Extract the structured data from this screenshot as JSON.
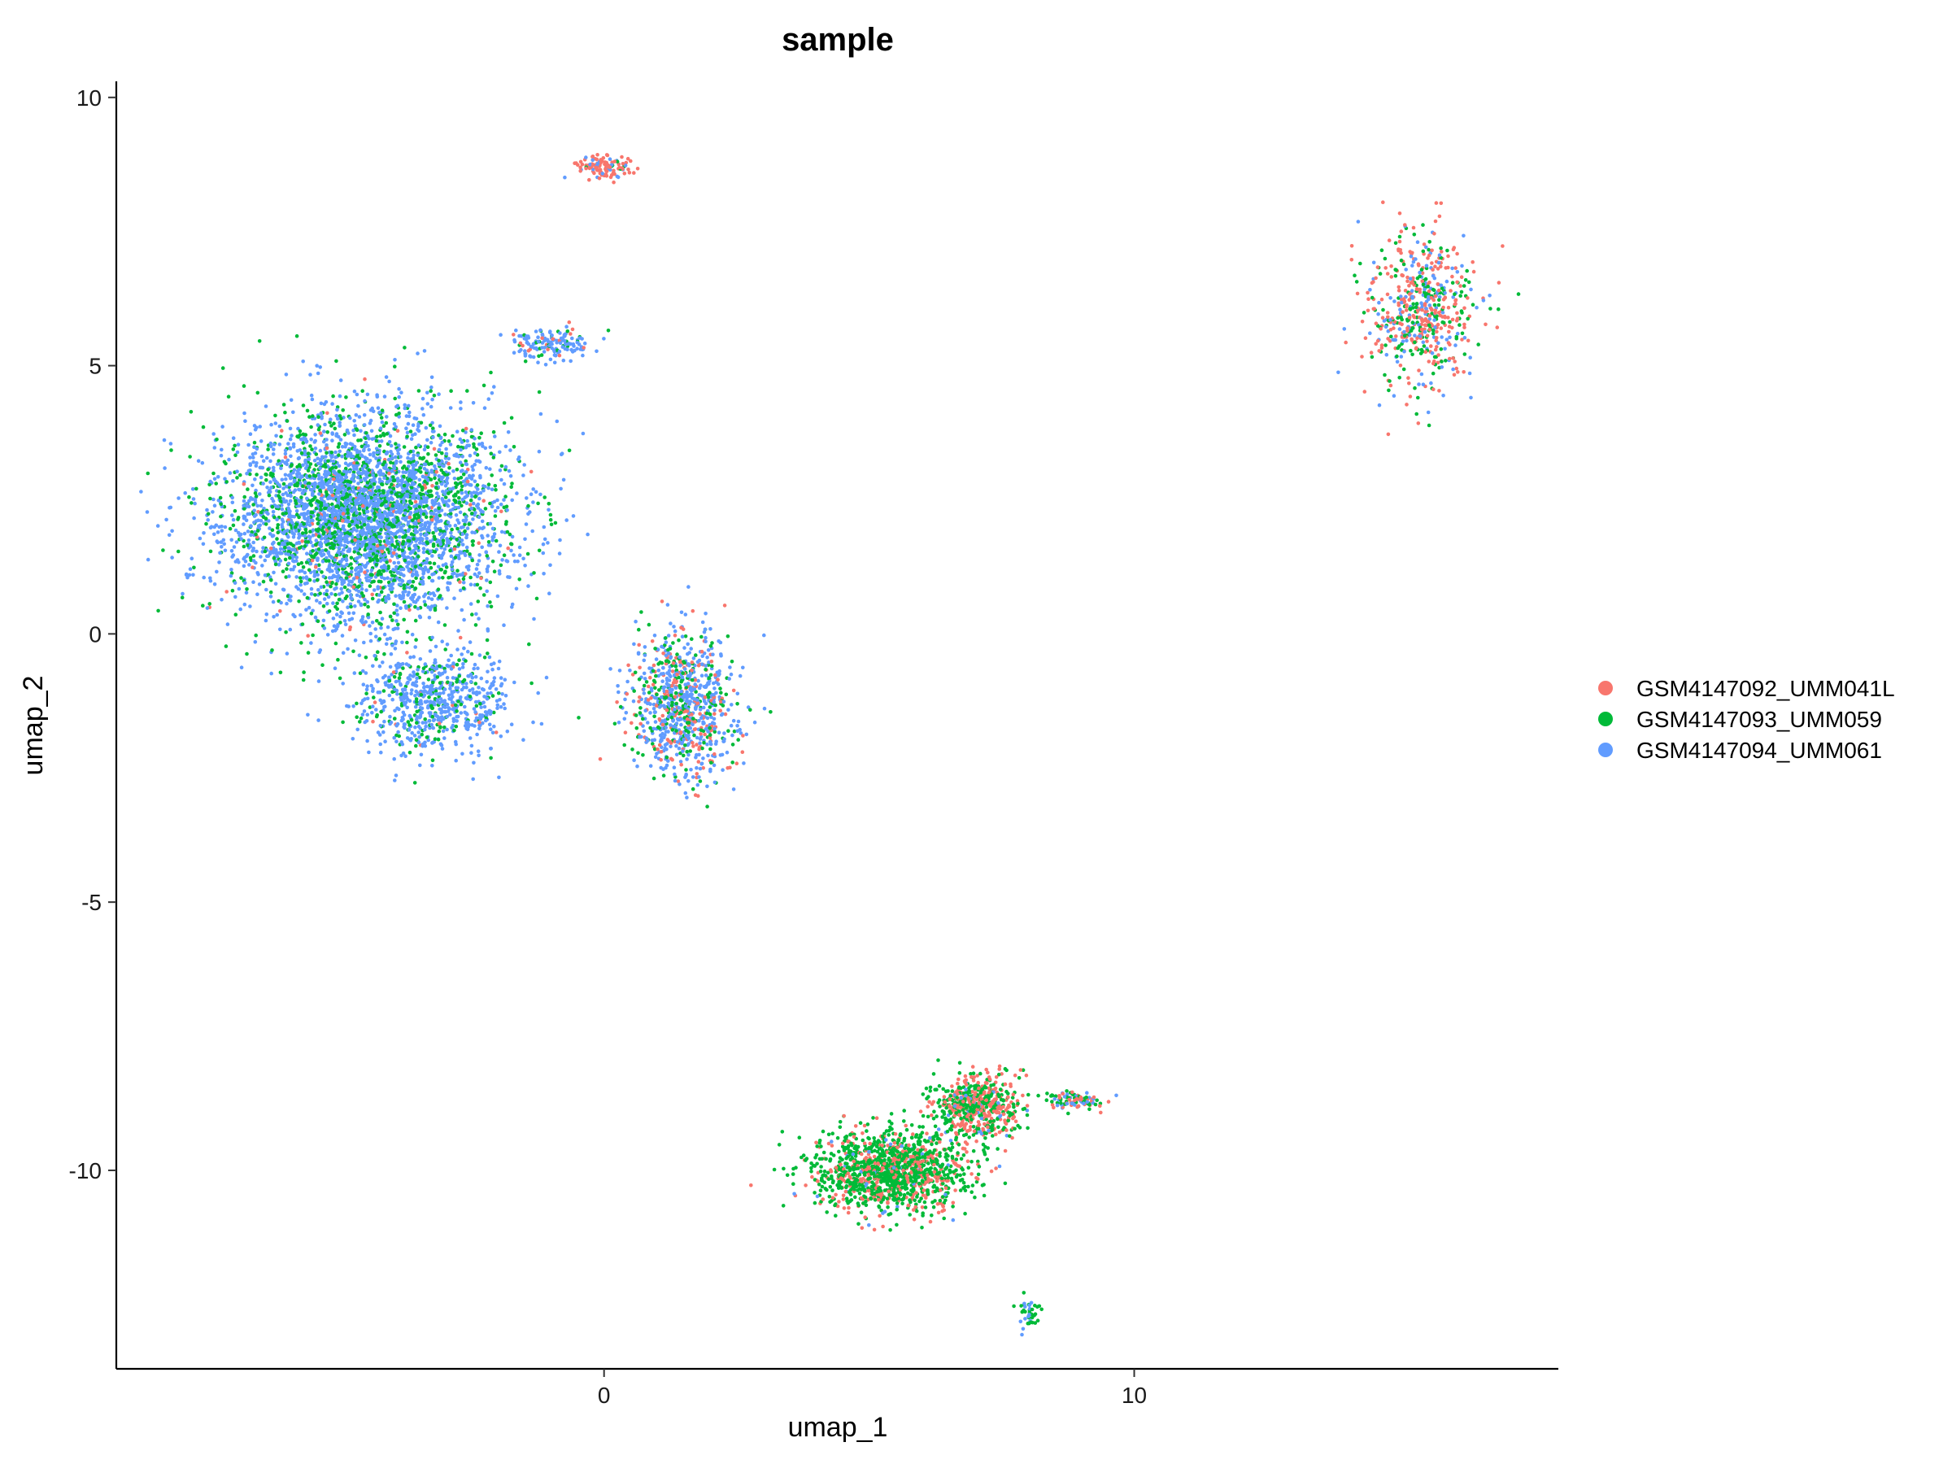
{
  "chart_data": {
    "type": "scatter",
    "title": "sample",
    "xlabel": "umap_1",
    "ylabel": "umap_2",
    "xlim": [
      -9.2,
      18.0
    ],
    "ylim": [
      -13.7,
      10.3
    ],
    "x_ticks": [
      0,
      10
    ],
    "y_ticks": [
      -10,
      -5,
      0,
      5,
      10
    ],
    "grid": false,
    "legend_position": "right",
    "series": [
      {
        "name": "GSM4147092_UMM041L",
        "color": "#F8766D"
      },
      {
        "name": "GSM4147093_UMM059",
        "color": "#00BA38"
      },
      {
        "name": "GSM4147094_UMM061",
        "color": "#619CFF"
      }
    ],
    "clusters": [
      {
        "center": [
          -4.5,
          2.2
        ],
        "spread": [
          2.2,
          1.6
        ],
        "n": 4200,
        "mix": [
          0.03,
          0.32,
          0.65
        ]
      },
      {
        "center": [
          -3.2,
          -1.3
        ],
        "spread": [
          1.2,
          0.8
        ],
        "n": 700,
        "mix": [
          0.04,
          0.22,
          0.74
        ]
      },
      {
        "center": [
          1.5,
          -1.3
        ],
        "spread": [
          0.8,
          1.1
        ],
        "n": 900,
        "mix": [
          0.18,
          0.25,
          0.57
        ]
      },
      {
        "center": [
          -1.0,
          5.4
        ],
        "spread": [
          0.7,
          0.25
        ],
        "n": 150,
        "mix": [
          0.08,
          0.17,
          0.75
        ]
      },
      {
        "center": [
          0.0,
          8.7
        ],
        "spread": [
          0.4,
          0.2
        ],
        "n": 120,
        "mix": [
          0.7,
          0.05,
          0.25
        ]
      },
      {
        "center": [
          15.4,
          6.0
        ],
        "spread": [
          0.8,
          1.2
        ],
        "n": 600,
        "mix": [
          0.5,
          0.25,
          0.25
        ]
      },
      {
        "center": [
          5.4,
          -10.0
        ],
        "spread": [
          1.2,
          0.6
        ],
        "n": 1300,
        "mix": [
          0.25,
          0.72,
          0.03
        ]
      },
      {
        "center": [
          7.0,
          -8.8
        ],
        "spread": [
          0.7,
          0.5
        ],
        "n": 600,
        "mix": [
          0.45,
          0.5,
          0.05
        ]
      },
      {
        "center": [
          8.9,
          -8.7
        ],
        "spread": [
          0.5,
          0.15
        ],
        "n": 100,
        "mix": [
          0.3,
          0.4,
          0.3
        ]
      },
      {
        "center": [
          8.0,
          -12.7
        ],
        "spread": [
          0.2,
          0.25
        ],
        "n": 40,
        "mix": [
          0.0,
          0.5,
          0.5
        ]
      }
    ]
  }
}
